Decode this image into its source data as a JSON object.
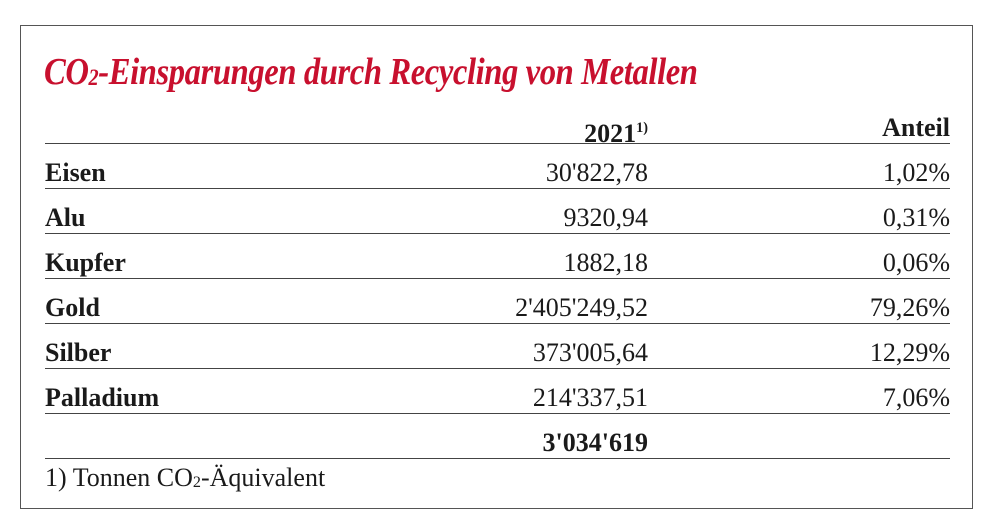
{
  "header": {
    "title": {
      "pre": "CO",
      "sub": "2",
      "post": "-Einsparungen durch Recycling von Metallen"
    }
  },
  "table": {
    "columns": [
      {
        "text": "2021",
        "sup": "1)"
      },
      {
        "text": "Anteil"
      }
    ],
    "rows": [
      [
        "Eisen",
        "30'822,78",
        "1,02%"
      ],
      [
        "Alu",
        "9320,94",
        "0,31%"
      ],
      [
        "Kupfer",
        "1882,18",
        "0,06%"
      ],
      [
        "Gold",
        "2'405'249,52",
        "79,26%"
      ],
      [
        "Silber",
        "373'005,64",
        "12,29%"
      ],
      [
        "Palladium",
        "214'337,51",
        "7,06%"
      ]
    ],
    "total": "3'034'619"
  },
  "footnote": {
    "pre": "1) Tonnen CO",
    "sub": "2",
    "post": "-Äquivalent"
  }
}
